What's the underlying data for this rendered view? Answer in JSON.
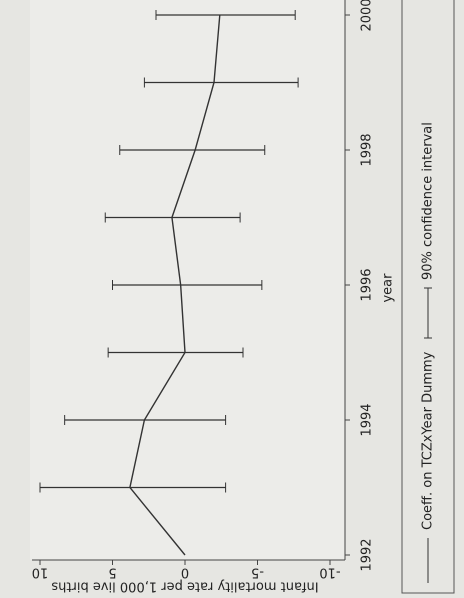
{
  "chart_data": {
    "type": "errorbar_line",
    "x_label": "year",
    "y_label": "Infant mortality rate per 1,000 live births",
    "x": [
      1992,
      1993,
      1994,
      1995,
      1996,
      1997,
      1998,
      1999,
      2000
    ],
    "series": [
      {
        "name": "Coeff. on TCZxYear Dummy",
        "color": "#333333",
        "values": [
          0,
          3.8,
          2.8,
          0,
          0.3,
          0.9,
          -0.7,
          -2,
          -2.4
        ]
      }
    ],
    "interval": {
      "name": "90% confidence interval",
      "color": "#333333",
      "lower": [
        null,
        -2.8,
        -2.8,
        -4,
        -5.3,
        -3.8,
        -5.5,
        -7.8,
        -7.6
      ],
      "upper": [
        null,
        10,
        8.3,
        5.3,
        5,
        5.5,
        4.5,
        2.8,
        2
      ]
    },
    "xlim": [
      1992,
      2000
    ],
    "xticks": [
      1992,
      1994,
      1996,
      1998,
      2000
    ],
    "ylim": [
      -10,
      10
    ],
    "yticks": [
      -10,
      -5,
      0,
      5,
      10
    ]
  }
}
